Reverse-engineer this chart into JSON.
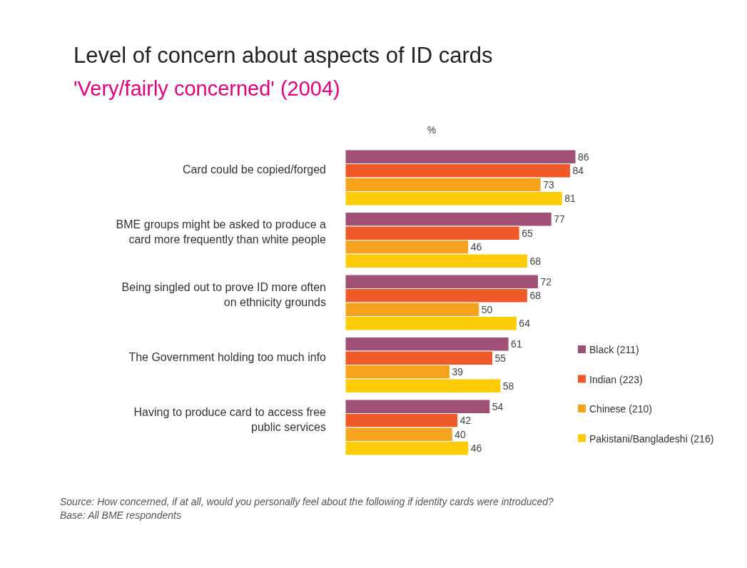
{
  "chart_data": {
    "type": "bar",
    "orientation": "horizontal",
    "title": "Level of concern about aspects of ID cards",
    "subtitle": "'Very/fairly concerned' (2004)",
    "xlabel": "%",
    "categories": [
      "Card could be copied/forged",
      "BME groups might be asked to produce a card more frequently than white people",
      "Being singled out to prove ID more often on ethnicity grounds",
      "The Government holding too much info",
      "Having to produce card to access free public services"
    ],
    "series": [
      {
        "name": "Black (211)",
        "color": "#a05075",
        "values": [
          86,
          77,
          72,
          61,
          54
        ]
      },
      {
        "name": "Indian (223)",
        "color": "#f05a28",
        "values": [
          84,
          65,
          68,
          55,
          42
        ]
      },
      {
        "name": "Chinese (210)",
        "color": "#f5a21e",
        "values": [
          73,
          46,
          50,
          39,
          40
        ]
      },
      {
        "name": "Pakistani/Bangladeshi (216)",
        "color": "#fdcc08",
        "values": [
          81,
          68,
          64,
          58,
          46
        ]
      }
    ],
    "data_labels": true,
    "legend": "right",
    "annotations": [
      "Source: How concerned, if at all, would you personally feel about the following if identity cards were introduced?",
      "Base: All BME respondents"
    ]
  }
}
